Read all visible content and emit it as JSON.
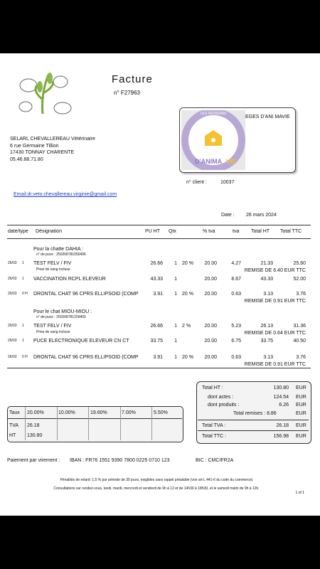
{
  "header": {
    "title": "Facture",
    "number": "n° F27963"
  },
  "recipient": {
    "name": "EGES D'ANI MAVIE",
    "logo_top": "LES PENSIONS",
    "logo_main": "D'ANIMA",
    "logo_end": "VIE"
  },
  "sender": {
    "lines": [
      "SELARL CHEVALLEREAU Vétérinaire",
      "6 rue Germaine Tillion",
      "17430 TONNAY CHARENTE",
      "05.46.88.71.80"
    ],
    "email": "Email:dr.veto.chevallereau.virginie@gmail.com"
  },
  "client": {
    "label": "n° client :",
    "value": "10037"
  },
  "date": {
    "label": "Date :",
    "value": "26 mars 2024"
  },
  "table": {
    "columns": [
      "date/type",
      "Désignation",
      "PU HT",
      "Qtx",
      "% tva",
      "tva",
      "Total HT",
      "Total TTC"
    ],
    "groups": [
      {
        "title": "Pour la chatte DAHIA :",
        "chip": "n° de puce : 250268781050496"
      },
      {
        "title": "Pour le chat MIOU-MIOU :",
        "chip": "n° de puce : 250268781209400"
      }
    ],
    "items": [
      {
        "date": "26/03",
        "type": "1",
        "designation": "TEST FELV / FIV",
        "sub": "Prise de sang incluse",
        "pu": "26.66",
        "qty": "1",
        "disc": "20 %",
        "pct_tva": "20.00",
        "tva": "4.27",
        "total_ht": "21.33",
        "total_ttc": "25.60",
        "remise": "REMISE DE 6.40 EUR TTC"
      },
      {
        "date": "26/03",
        "type": "1",
        "designation": "VACCINATION RCPL ELEVEUR",
        "pu": "43.33",
        "qty": "1",
        "pct_tva": "20.00",
        "tva": "8.67",
        "total_ht": "43.33",
        "total_ttc": "52.00"
      },
      {
        "date": "26/03",
        "type": "0 H",
        "designation": "DRONTAL CHAT 96 CPRS  ELLIPSOID (COMP",
        "pu": "3.91",
        "qty": "1",
        "disc": "20 %",
        "pct_tva": "20.00",
        "tva": "0.63",
        "total_ht": "3.13",
        "total_ttc": "3.76",
        "remise": "REMISE DE 0.91 EUR TTC"
      },
      {
        "date": "26/03",
        "type": "1",
        "designation": "TEST FELV / FIV",
        "sub": "Prise de sang incluse",
        "pu": "26.66",
        "qty": "1",
        "disc": "2 %",
        "pct_tva": "20.00",
        "tva": "5.23",
        "total_ht": "26.13",
        "total_ttc": "31.36",
        "remise": "REMISE DE 0.64 EUR TTC"
      },
      {
        "date": "26/03",
        "type": "1",
        "designation": "PUCE ELECTRONIQUE ELEVEUR CN CT",
        "pu": "33.75",
        "qty": "1",
        "pct_tva": "20.00",
        "tva": "6.75",
        "total_ht": "33.75",
        "total_ttc": "40.50"
      },
      {
        "date": "26/03",
        "type": "0 H",
        "designation": "DRONTAL CHAT 96 CPRS  ELLIPSOID (COMP",
        "pu": "3.91",
        "qty": "1",
        "disc": "20 %",
        "pct_tva": "20.00",
        "tva": "0.63",
        "total_ht": "3.13",
        "total_ttc": "3.76",
        "remise": "REMISE DE 0.91 EUR TTC"
      }
    ]
  },
  "totals": [
    {
      "label": "Total HT :",
      "value": "130.80",
      "unit": "EUR"
    },
    {
      "label": "dont actes :",
      "value": "124.54",
      "unit": "EUR"
    },
    {
      "label": "dont produits :",
      "value": "6.26",
      "unit": "EUR"
    },
    {
      "label": "Total remises : 8.86",
      "unit": "EUR"
    },
    {
      "label": "Total TVA :",
      "value": "26.18",
      "unit": "EUR"
    },
    {
      "label": "Total TTC :",
      "value": "156.98",
      "unit": "EUR"
    }
  ],
  "tax_table": {
    "rows": [
      [
        "Taux",
        "20.00%",
        "10.00%",
        "19.60%",
        "7.00%",
        "5.50%"
      ],
      [
        "TVA",
        "26.18"
      ],
      [
        "HT",
        "130.80"
      ]
    ]
  },
  "payment": {
    "label": "Paiement par virement :",
    "iban": "IBAN : FR76 1551 9390 7800 0225 0710 123",
    "bic": "BIC : CMCIFR2A"
  },
  "footer": {
    "lines": [
      "Pénalités de retard: 1,5 % par période de 30 jours, exigibles sans rappel préalable (voir art L 441-6 du code du commerce)",
      "Consultations sur rendez-vous, lundi, mardi, mercredi et vendredi de 9h à 12 et de 14h30 à 18h30, et le samedi matin de 9h à 12h."
    ],
    "page": "1 of 1"
  }
}
